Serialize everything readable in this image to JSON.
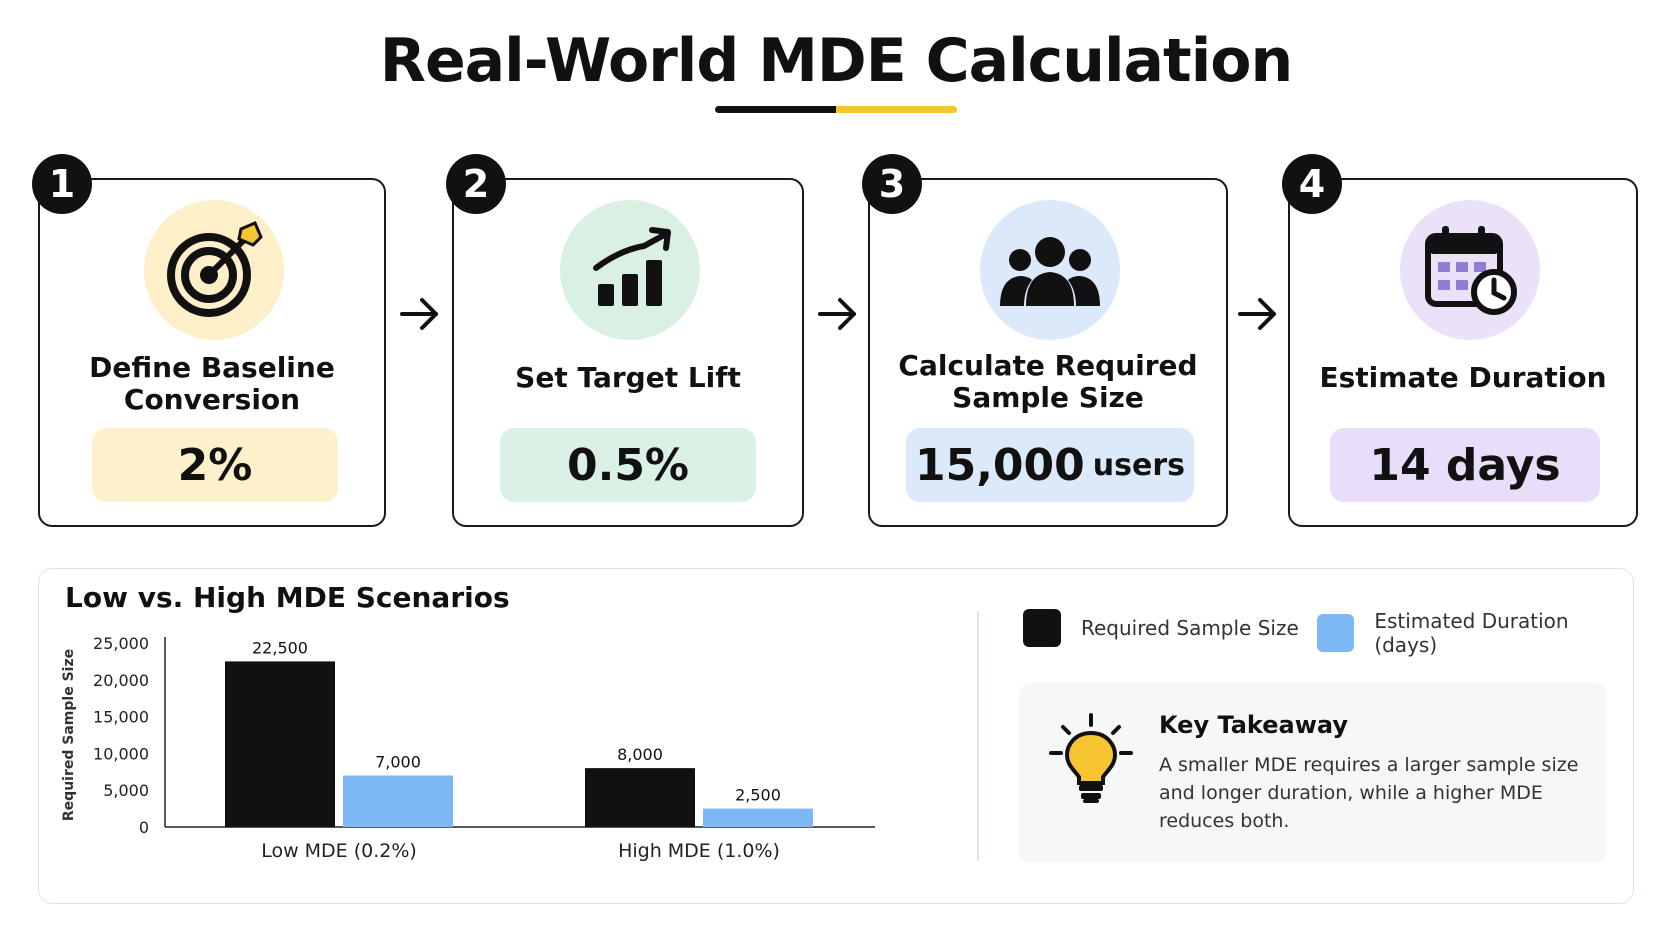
{
  "title": "Real-World MDE Calculation",
  "colors": {
    "dark": "#111111",
    "accent_yellow": "#f6c531",
    "blue": "#7db8f5"
  },
  "steps": [
    {
      "number": "1",
      "label_line1": "Define Baseline",
      "label_line2": "Conversion",
      "value": "2%",
      "unit": "",
      "icon": "target-icon",
      "circle_color": "#fdefc8",
      "pill_color": "#fdf1cc"
    },
    {
      "number": "2",
      "label_line1": "Set Target Lift",
      "label_line2": "",
      "value": "0.5%",
      "unit": "",
      "icon": "growth-chart-icon",
      "circle_color": "#d9f0e3",
      "pill_color": "#dcf1e5"
    },
    {
      "number": "3",
      "label_line1": "Calculate Required",
      "label_line2": "Sample Size",
      "value": "15,000",
      "unit": "users",
      "icon": "users-group-icon",
      "circle_color": "#dbe9fb",
      "pill_color": "#dbe9fb"
    },
    {
      "number": "4",
      "label_line1": "Estimate Duration",
      "label_line2": "",
      "value": "14 days",
      "unit": "",
      "icon": "calendar-clock-icon",
      "circle_color": "#ebe2fa",
      "pill_color": "#e8defa"
    }
  ],
  "chart_data": {
    "type": "bar",
    "title": "Low vs. High MDE Scenarios",
    "ylabel": "Required Sample Size",
    "xlabel": "",
    "categories": [
      "Low MDE (0.2%)",
      "High MDE (1.0%)"
    ],
    "ylim": [
      0,
      25000
    ],
    "yticks": [
      "25,000",
      "20,000",
      "15,000",
      "10,000",
      "5,000",
      "0"
    ],
    "ytick_values": [
      25000,
      20000,
      15000,
      10000,
      5000,
      0
    ],
    "series": [
      {
        "name": "Required Sample Size",
        "color": "#111111",
        "values": [
          22500,
          8000
        ],
        "labels": [
          "22,500",
          "8,000"
        ]
      },
      {
        "name": "Estimated Duration (days)",
        "color": "#7db8f5",
        "values": [
          7000,
          2500
        ],
        "labels": [
          "7,000",
          "2,500"
        ]
      }
    ],
    "legend_position": "top-right",
    "grid": false
  },
  "takeaway": {
    "title": "Key Takeaway",
    "text": "A smaller MDE requires a larger sample size and longer duration, while a higher MDE reduces both.",
    "icon": "lightbulb-icon"
  }
}
